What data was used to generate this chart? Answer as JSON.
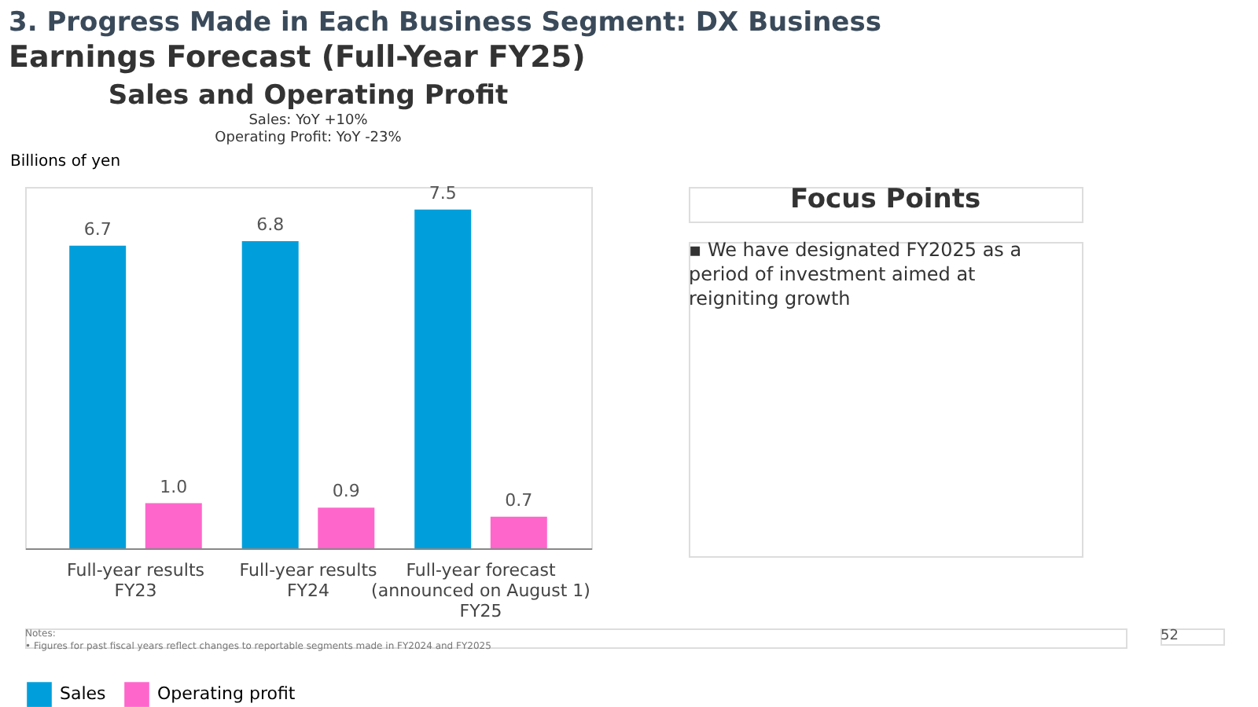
{
  "chart_data": {
    "type": "bar",
    "title": "3. Progress Made in Each Business Segment: DX Business",
    "subtitle": "Earnings Forecast (Full-Year FY25)",
    "ylabel": "Billions of yen",
    "categories": [
      "Full-year results\nFY23",
      "Full-year results\nFY24",
      "Full-year forecast\n(announced on August 1)\nFY25"
    ],
    "series": [
      {
        "name": "Sales",
        "color": "#009fdb",
        "values": [
          6.7,
          6.8,
          7.5
        ],
        "value_labels": [
          "6.7",
          "6.8",
          "7.5"
        ]
      },
      {
        "name": "Operating profit",
        "color": "#ff66cc",
        "values": [
          1.0,
          0.9,
          0.7
        ],
        "value_labels": [
          "1.0",
          "0.9",
          "0.7"
        ]
      }
    ],
    "grid": false,
    "legend": "bottom",
    "annotations": [
      "Sales and Operating Profit",
      "Sales: YoY +10%",
      "Operating Profit: YoY -23%",
      "Focus Points",
      "▪ We have designated FY2025 as a period of investment aimed at reigniting growth",
      "Notes:",
      "• Figures for past fiscal years reflect changes to reportable segments made in FY2024 and FY2025",
      "52"
    ]
  }
}
